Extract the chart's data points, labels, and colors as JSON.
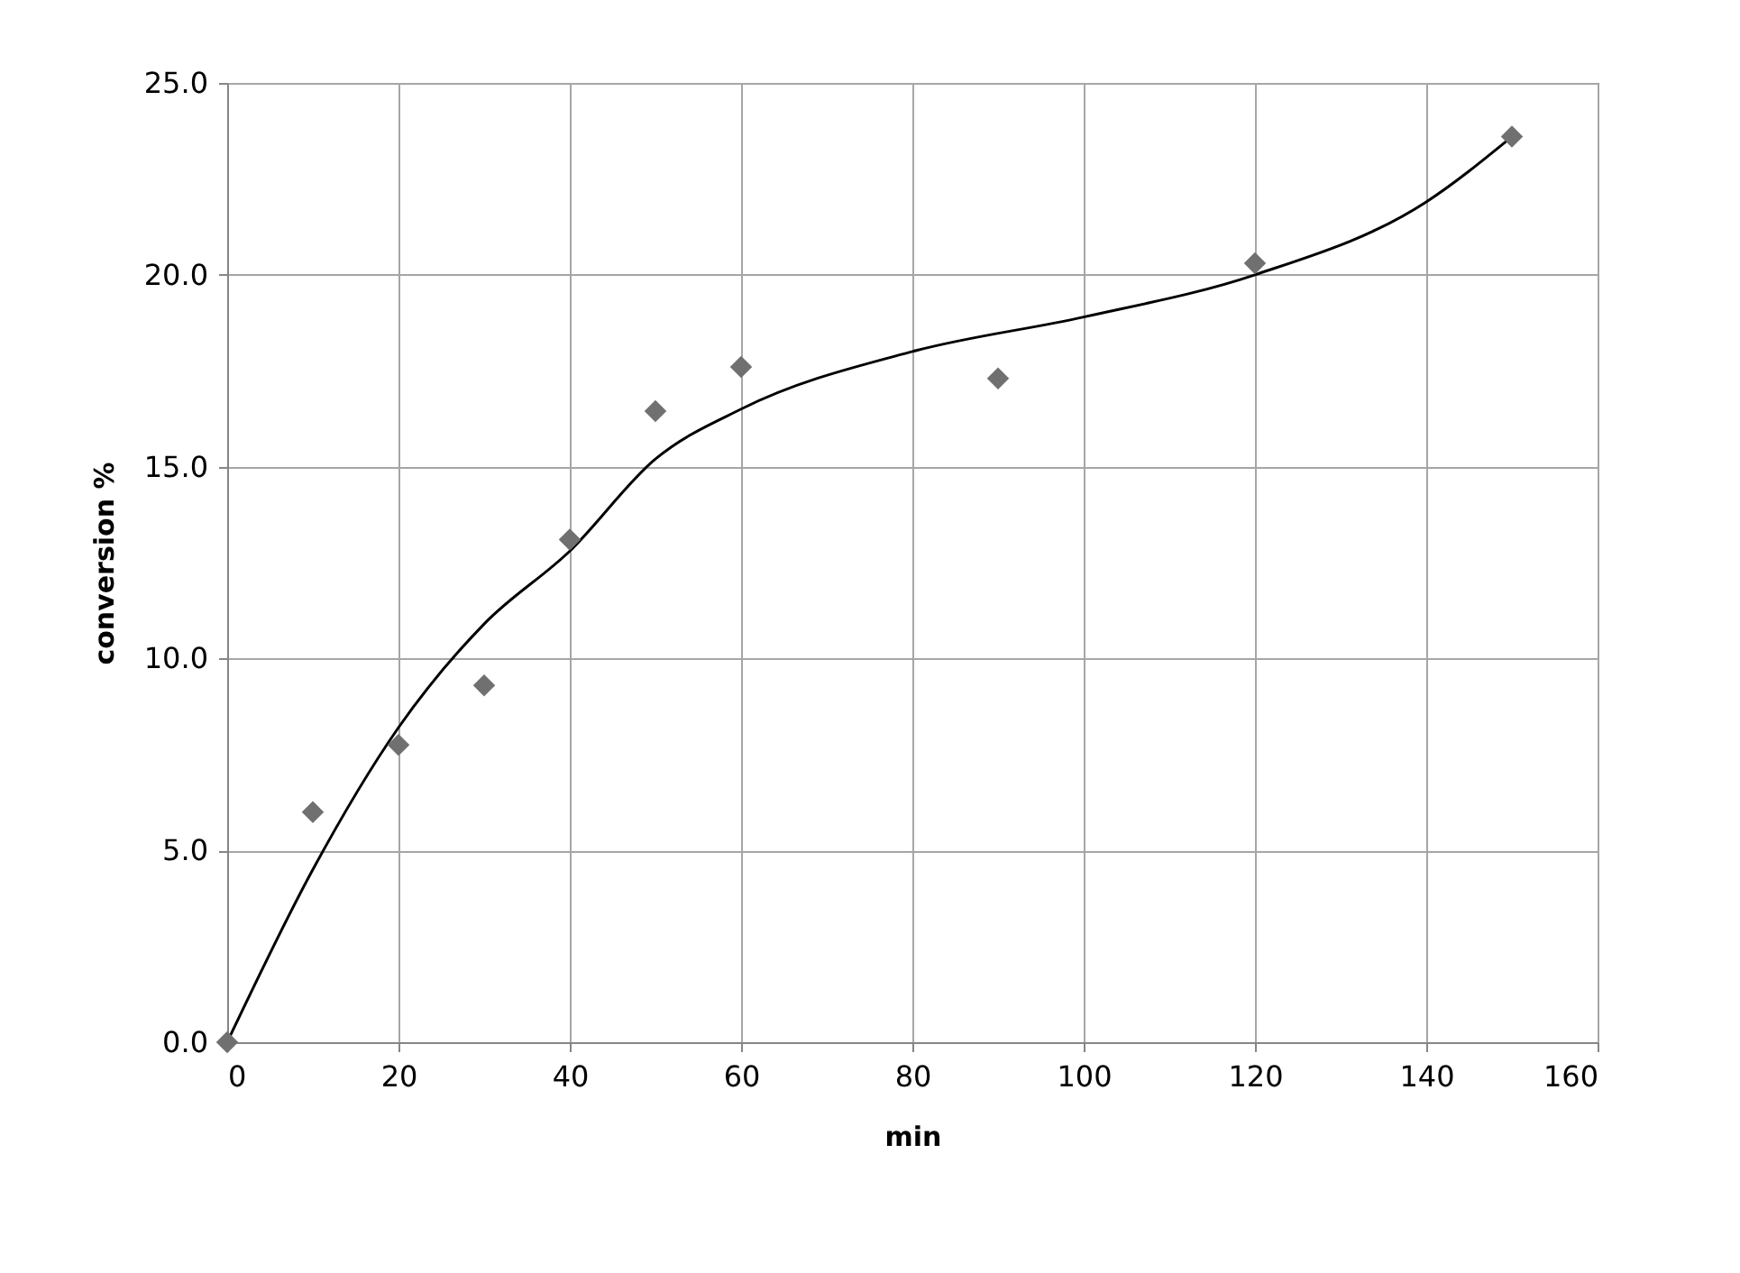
{
  "chart_data": {
    "type": "scatter",
    "xlabel": "min",
    "ylabel": "conversion %",
    "xlim": [
      0,
      160
    ],
    "xticks": [
      0,
      20,
      40,
      60,
      80,
      100,
      120,
      140,
      160
    ],
    "ylim": [
      0,
      25
    ],
    "yticks": [
      {
        "value": 0,
        "label": "0.0"
      },
      {
        "value": 5,
        "label": "5.0"
      },
      {
        "value": 10,
        "label": "10.0"
      },
      {
        "value": 15,
        "label": "15.0"
      },
      {
        "value": 20,
        "label": "20.0"
      },
      {
        "value": 25,
        "label": "25.0"
      }
    ],
    "grid": true,
    "legend": false,
    "series": [
      {
        "color": "#707070",
        "marker": "diamond",
        "x": [
          0,
          10,
          20,
          30,
          40,
          50,
          60,
          90,
          120,
          150
        ],
        "values": [
          0,
          6.0,
          7.75,
          9.3,
          13.1,
          16.45,
          17.6,
          17.3,
          20.3,
          23.6
        ]
      },
      {
        "type": "line",
        "color": "#000000",
        "marker": "none",
        "line_style": "solid",
        "x": [
          0,
          10,
          20,
          30,
          40,
          50,
          60,
          80,
          100,
          120,
          140,
          150
        ],
        "values": [
          0,
          4.5,
          8.2,
          10.9,
          12.8,
          15.2,
          16.5,
          18.0,
          18.9,
          20.0,
          21.9,
          23.6
        ]
      }
    ]
  }
}
